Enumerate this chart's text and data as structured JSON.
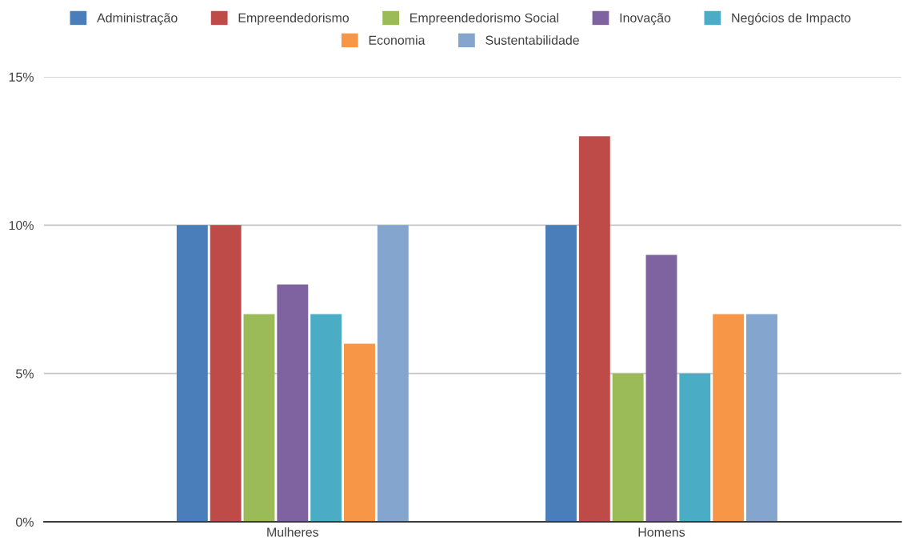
{
  "chart_data": {
    "type": "bar",
    "categories": [
      "Mulheres",
      "Homens"
    ],
    "series": [
      {
        "name": "Administração",
        "color": "#4a7ebb",
        "values": [
          10,
          10
        ]
      },
      {
        "name": "Empreendedorismo",
        "color": "#be4b48",
        "values": [
          10,
          13
        ]
      },
      {
        "name": "Empreendedorismo Social",
        "color": "#9bbb59",
        "values": [
          7,
          5
        ]
      },
      {
        "name": "Inovação",
        "color": "#7f63a1",
        "values": [
          8,
          9
        ]
      },
      {
        "name": "Negócios de Impacto",
        "color": "#4bacc6",
        "values": [
          7,
          5
        ]
      },
      {
        "name": "Economia",
        "color": "#f79646",
        "values": [
          6,
          7
        ]
      },
      {
        "name": "Sustentabilidade",
        "color": "#84a6ce",
        "values": [
          10,
          7
        ]
      }
    ],
    "ylim": [
      0,
      15
    ],
    "yticks": [
      {
        "value": 0,
        "label": "0%"
      },
      {
        "value": 5,
        "label": "5%"
      },
      {
        "value": 10,
        "label": "10%"
      },
      {
        "value": 15,
        "label": "15%"
      }
    ],
    "grid": "y",
    "legend": "top"
  }
}
